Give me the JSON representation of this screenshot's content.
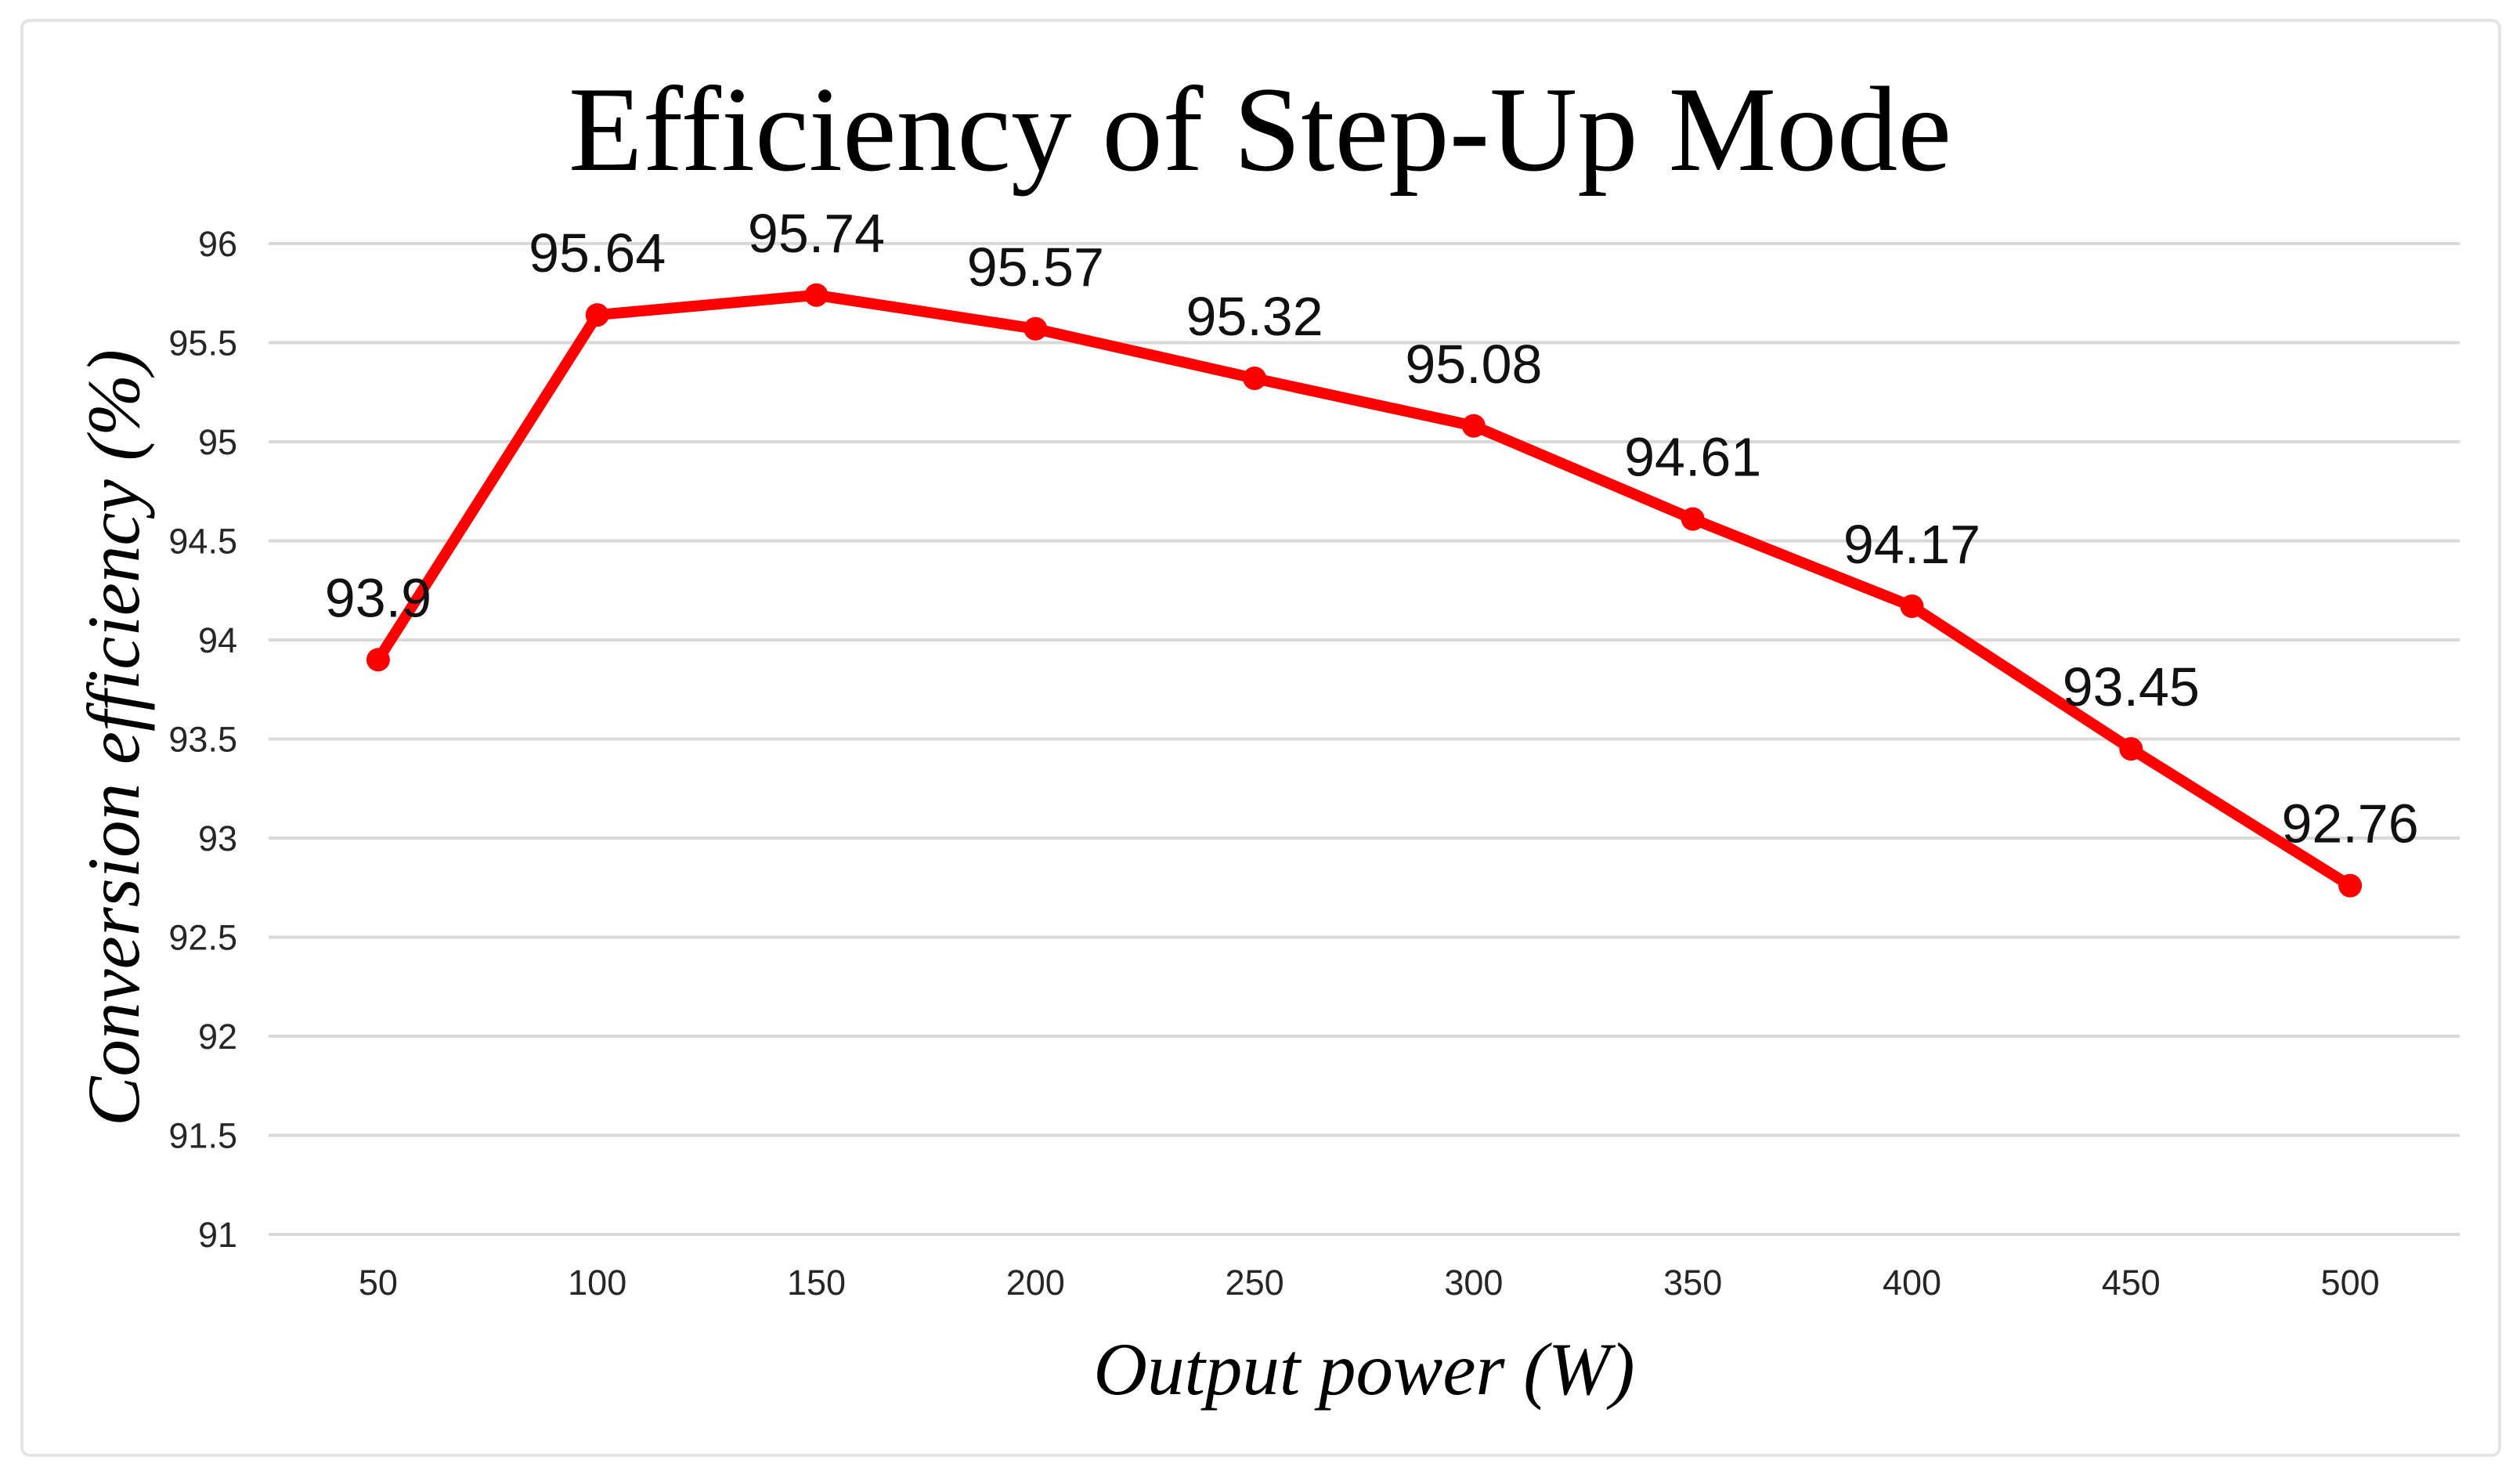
{
  "title": "Efficiency of Step-Up Mode",
  "chart_data": {
    "type": "line",
    "title": "Efficiency of Step-Up Mode",
    "xlabel": "Output power (W)",
    "ylabel": "Conversion efficiency (%)",
    "categories": [
      "50",
      "100",
      "150",
      "200",
      "250",
      "300",
      "350",
      "400",
      "450",
      "500"
    ],
    "series": [
      {
        "name": "Conversion efficiency",
        "values": [
          93.9,
          95.64,
          95.74,
          95.57,
          95.32,
          95.08,
          94.61,
          94.17,
          93.45,
          92.76
        ],
        "data_labels": [
          "93.9",
          "95.64",
          "95.74",
          "95.57",
          "95.32",
          "95.08",
          "94.61",
          "94.17",
          "93.45",
          "92.76"
        ]
      }
    ],
    "ylim": [
      91,
      96
    ],
    "ytick_labels": [
      "91",
      "91.5",
      "92",
      "92.5",
      "93",
      "93.5",
      "94",
      "94.5",
      "95",
      "95.5",
      "96"
    ],
    "grid": "horizontal-only",
    "legend": "none",
    "line_color": "#FE0000",
    "marker": "circle",
    "gridline_color": "#D9D9D9",
    "frame_color": "#E4E4E4",
    "tick_color": "#262626",
    "label_color": "#111111"
  }
}
